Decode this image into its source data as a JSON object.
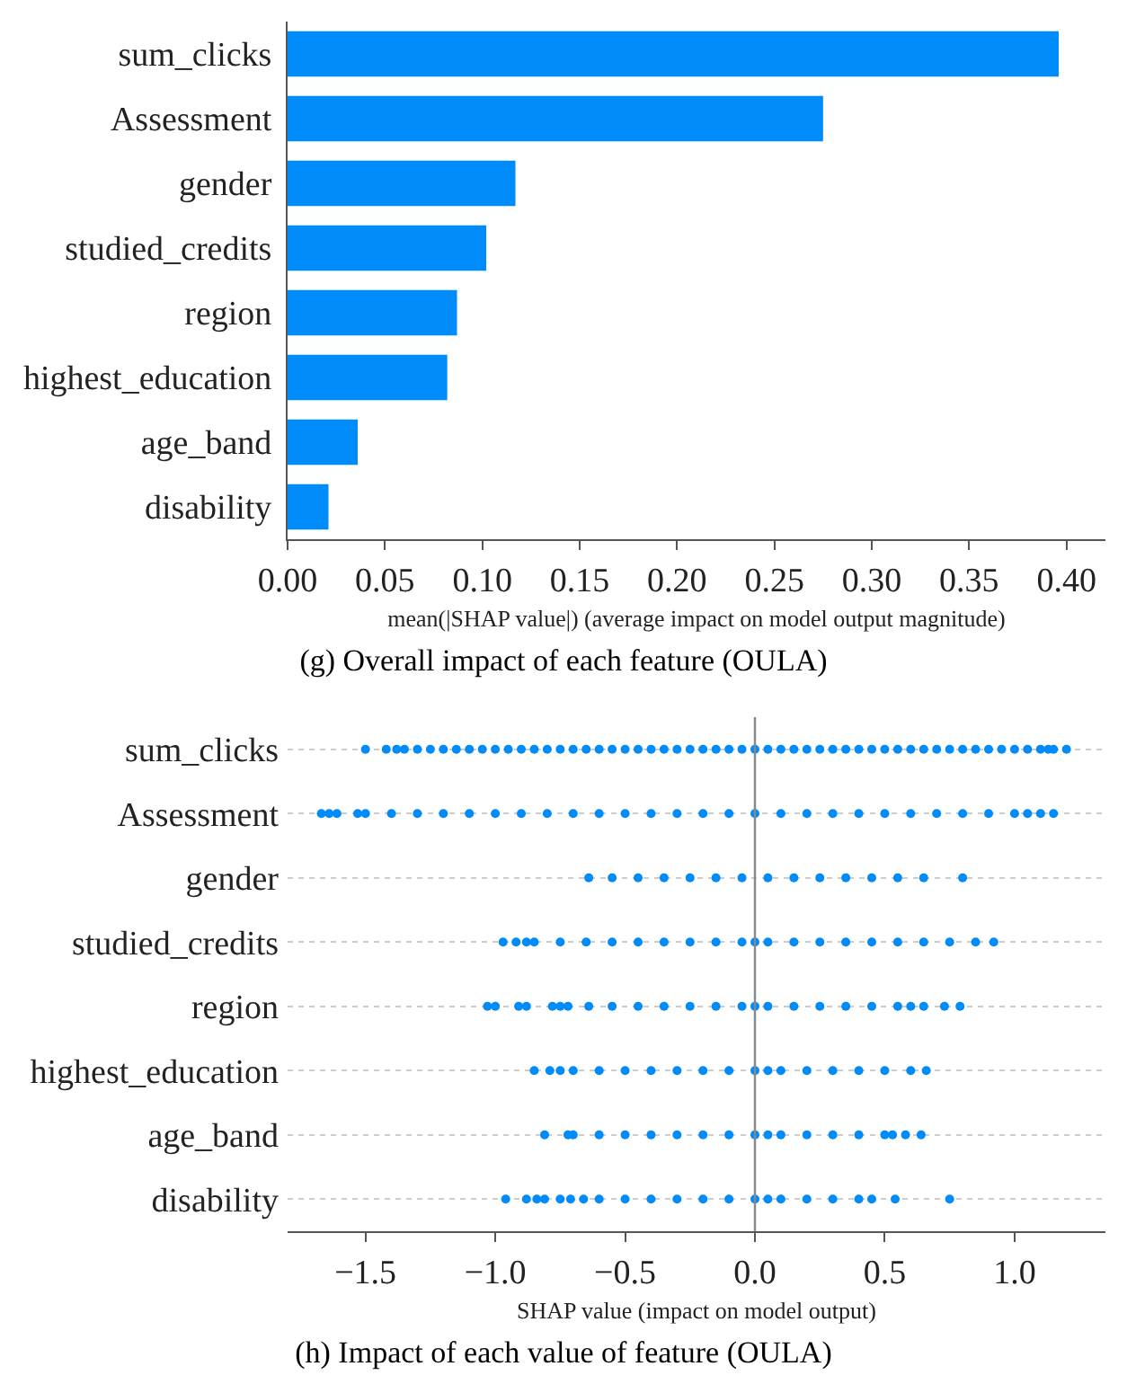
{
  "chart_data": [
    {
      "type": "bar",
      "orientation": "horizontal",
      "categories": [
        "sum_clicks",
        "Assessment",
        "gender",
        "studied_credits",
        "region",
        "highest_education",
        "age_band",
        "disability"
      ],
      "values": [
        0.396,
        0.275,
        0.117,
        0.102,
        0.087,
        0.082,
        0.036,
        0.021
      ],
      "color": "#008bfb",
      "xlim": [
        0,
        0.42
      ],
      "xticks": [
        {
          "value": 0,
          "label": "0.00"
        },
        {
          "value": 0.05,
          "label": "0.05"
        },
        {
          "value": 0.1,
          "label": "0.10"
        },
        {
          "value": 0.15,
          "label": "0.15"
        },
        {
          "value": 0.2,
          "label": "0.20"
        },
        {
          "value": 0.25,
          "label": "0.25"
        },
        {
          "value": 0.3,
          "label": "0.30"
        },
        {
          "value": 0.35,
          "label": "0.35"
        },
        {
          "value": 0.4,
          "label": "0.40"
        }
      ],
      "xlabel": "mean(|SHAP value|) (average impact on model output magnitude)",
      "grid": false,
      "annotations": [
        "(g) Overall impact of each feature (OULA)"
      ]
    },
    {
      "type": "scatter",
      "orientation": "horizontal",
      "marker": "circle",
      "categories": [
        "sum_clicks",
        "Assessment",
        "gender",
        "studied_credits",
        "region",
        "highest_education",
        "age_band",
        "disability"
      ],
      "series": [
        {
          "color": "#008bfb",
          "values": [
            -1.5,
            -1.42,
            -1.38,
            -1.35,
            -1.3,
            -1.25,
            -1.2,
            -1.15,
            -1.1,
            -1.05,
            -1.0,
            -0.95,
            -0.9,
            -0.85,
            -0.8,
            -0.75,
            -0.7,
            -0.65,
            -0.6,
            -0.55,
            -0.5,
            -0.45,
            -0.4,
            -0.35,
            -0.3,
            -0.25,
            -0.2,
            -0.15,
            -0.1,
            -0.05,
            0.0,
            0.05,
            0.1,
            0.15,
            0.2,
            0.25,
            0.3,
            0.35,
            0.4,
            0.45,
            0.5,
            0.55,
            0.6,
            0.65,
            0.7,
            0.75,
            0.8,
            0.85,
            0.9,
            0.95,
            1.0,
            1.05,
            1.1,
            1.13,
            1.15,
            1.2
          ],
          "x": [
            "sum_clicks",
            "sum_clicks",
            "sum_clicks",
            "sum_clicks",
            "sum_clicks",
            "sum_clicks",
            "sum_clicks",
            "sum_clicks",
            "sum_clicks",
            "sum_clicks",
            "sum_clicks",
            "sum_clicks",
            "sum_clicks",
            "sum_clicks",
            "sum_clicks",
            "sum_clicks",
            "sum_clicks",
            "sum_clicks",
            "sum_clicks",
            "sum_clicks",
            "sum_clicks",
            "sum_clicks",
            "sum_clicks",
            "sum_clicks",
            "sum_clicks",
            "sum_clicks",
            "sum_clicks",
            "sum_clicks",
            "sum_clicks",
            "sum_clicks",
            "sum_clicks",
            "sum_clicks",
            "sum_clicks",
            "sum_clicks",
            "sum_clicks",
            "sum_clicks",
            "sum_clicks",
            "sum_clicks",
            "sum_clicks",
            "sum_clicks",
            "sum_clicks",
            "sum_clicks",
            "sum_clicks",
            "sum_clicks",
            "sum_clicks",
            "sum_clicks",
            "sum_clicks",
            "sum_clicks",
            "sum_clicks",
            "sum_clicks",
            "sum_clicks",
            "sum_clicks",
            "sum_clicks",
            "sum_clicks",
            "sum_clicks",
            "sum_clicks"
          ]
        },
        {
          "color": "#008bfb",
          "values": [
            -1.67,
            -1.64,
            -1.61,
            -1.53,
            -1.5,
            -1.4,
            -1.3,
            -1.2,
            -1.1,
            -1.0,
            -0.9,
            -0.8,
            -0.7,
            -0.6,
            -0.5,
            -0.4,
            -0.3,
            -0.2,
            -0.1,
            0.0,
            0.1,
            0.2,
            0.3,
            0.4,
            0.5,
            0.6,
            0.7,
            0.8,
            0.9,
            1.0,
            1.05,
            1.1,
            1.15
          ],
          "x": [
            "Assessment",
            "Assessment",
            "Assessment",
            "Assessment",
            "Assessment",
            "Assessment",
            "Assessment",
            "Assessment",
            "Assessment",
            "Assessment",
            "Assessment",
            "Assessment",
            "Assessment",
            "Assessment",
            "Assessment",
            "Assessment",
            "Assessment",
            "Assessment",
            "Assessment",
            "Assessment",
            "Assessment",
            "Assessment",
            "Assessment",
            "Assessment",
            "Assessment",
            "Assessment",
            "Assessment",
            "Assessment",
            "Assessment",
            "Assessment",
            "Assessment",
            "Assessment",
            "Assessment"
          ]
        },
        {
          "color": "#008bfb",
          "values": [
            -0.64,
            -0.55,
            -0.45,
            -0.35,
            -0.25,
            -0.15,
            -0.05,
            0.05,
            0.15,
            0.25,
            0.35,
            0.45,
            0.55,
            0.65,
            0.8
          ],
          "x": [
            "gender",
            "gender",
            "gender",
            "gender",
            "gender",
            "gender",
            "gender",
            "gender",
            "gender",
            "gender",
            "gender",
            "gender",
            "gender",
            "gender",
            "gender"
          ]
        },
        {
          "color": "#008bfb",
          "values": [
            -0.97,
            -0.92,
            -0.88,
            -0.85,
            -0.75,
            -0.65,
            -0.55,
            -0.45,
            -0.35,
            -0.25,
            -0.15,
            -0.05,
            0.0,
            0.05,
            0.15,
            0.25,
            0.35,
            0.45,
            0.55,
            0.65,
            0.75,
            0.85,
            0.92
          ],
          "x": [
            "studied_credits",
            "studied_credits",
            "studied_credits",
            "studied_credits",
            "studied_credits",
            "studied_credits",
            "studied_credits",
            "studied_credits",
            "studied_credits",
            "studied_credits",
            "studied_credits",
            "studied_credits",
            "studied_credits",
            "studied_credits",
            "studied_credits",
            "studied_credits",
            "studied_credits",
            "studied_credits",
            "studied_credits",
            "studied_credits",
            "studied_credits",
            "studied_credits",
            "studied_credits"
          ]
        },
        {
          "color": "#008bfb",
          "values": [
            -1.03,
            -1.0,
            -0.91,
            -0.88,
            -0.78,
            -0.75,
            -0.72,
            -0.64,
            -0.55,
            -0.45,
            -0.35,
            -0.25,
            -0.15,
            -0.05,
            0.0,
            0.05,
            0.15,
            0.25,
            0.35,
            0.45,
            0.55,
            0.6,
            0.65,
            0.73,
            0.79
          ],
          "x": [
            "region",
            "region",
            "region",
            "region",
            "region",
            "region",
            "region",
            "region",
            "region",
            "region",
            "region",
            "region",
            "region",
            "region",
            "region",
            "region",
            "region",
            "region",
            "region",
            "region",
            "region",
            "region",
            "region",
            "region",
            "region"
          ]
        },
        {
          "color": "#008bfb",
          "values": [
            -0.85,
            -0.79,
            -0.75,
            -0.7,
            -0.6,
            -0.5,
            -0.4,
            -0.3,
            -0.2,
            -0.1,
            0.0,
            0.05,
            0.1,
            0.2,
            0.3,
            0.4,
            0.5,
            0.6,
            0.66
          ],
          "x": [
            "highest_education",
            "highest_education",
            "highest_education",
            "highest_education",
            "highest_education",
            "highest_education",
            "highest_education",
            "highest_education",
            "highest_education",
            "highest_education",
            "highest_education",
            "highest_education",
            "highest_education",
            "highest_education",
            "highest_education",
            "highest_education",
            "highest_education",
            "highest_education",
            "highest_education"
          ]
        },
        {
          "color": "#008bfb",
          "values": [
            -0.81,
            -0.72,
            -0.7,
            -0.6,
            -0.5,
            -0.4,
            -0.3,
            -0.2,
            -0.1,
            0.0,
            0.05,
            0.1,
            0.2,
            0.3,
            0.4,
            0.5,
            0.53,
            0.58,
            0.64
          ],
          "x": [
            "age_band",
            "age_band",
            "age_band",
            "age_band",
            "age_band",
            "age_band",
            "age_band",
            "age_band",
            "age_band",
            "age_band",
            "age_band",
            "age_band",
            "age_band",
            "age_band",
            "age_band",
            "age_band",
            "age_band",
            "age_band",
            "age_band"
          ]
        },
        {
          "color": "#008bfb",
          "values": [
            -0.96,
            -0.88,
            -0.84,
            -0.81,
            -0.75,
            -0.71,
            -0.66,
            -0.6,
            -0.5,
            -0.4,
            -0.3,
            -0.2,
            -0.1,
            0.0,
            0.05,
            0.1,
            0.2,
            0.3,
            0.4,
            0.45,
            0.54,
            0.75
          ],
          "x": [
            "disability",
            "disability",
            "disability",
            "disability",
            "disability",
            "disability",
            "disability",
            "disability",
            "disability",
            "disability",
            "disability",
            "disability",
            "disability",
            "disability",
            "disability",
            "disability",
            "disability",
            "disability",
            "disability",
            "disability",
            "disability",
            "disability"
          ]
        }
      ],
      "xlim": [
        -1.8,
        1.35
      ],
      "xticks": [
        {
          "value": -1.5,
          "label": "−1.5"
        },
        {
          "value": -1,
          "label": "−1.0"
        },
        {
          "value": -0.5,
          "label": "−0.5"
        },
        {
          "value": 0,
          "label": "0.0"
        },
        {
          "value": 0.5,
          "label": "0.5"
        },
        {
          "value": 1,
          "label": "1.0"
        }
      ],
      "ref_lines": [
        {
          "axis": "x",
          "value": 0,
          "color": "#888888"
        }
      ],
      "xlabel": "SHAP value (impact on model output)",
      "grid": "y",
      "annotations": [
        "(h) Impact of each value of feature (OULA)"
      ]
    }
  ]
}
